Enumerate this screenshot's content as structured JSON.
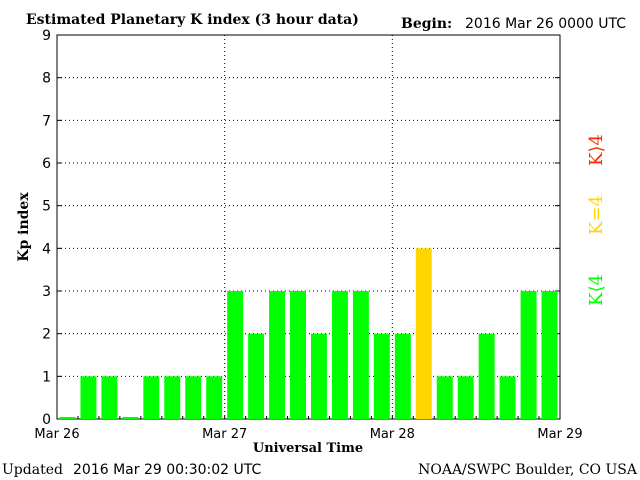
{
  "header": {
    "title": "Estimated Planetary K index (3 hour data)",
    "begin_label": "Begin:",
    "begin_value": "2016 Mar 26 0000 UTC"
  },
  "footer": {
    "updated_label": "Updated",
    "updated_value": "2016 Mar 29 00:30:02 UTC",
    "source": "NOAA/SWPC Boulder, CO USA"
  },
  "legend": {
    "high": "K>4",
    "equal": "K=4",
    "low": "K<4"
  },
  "colors": {
    "low": "#00ff00",
    "equal": "#ffd700",
    "high": "#ff2a00",
    "gridline": "#000000",
    "axis": "#000000"
  },
  "chart_data": {
    "type": "bar",
    "xlabel": "Universal Time",
    "ylabel": "Kp index",
    "ylim": [
      0,
      9
    ],
    "yticks": [
      "0",
      "1",
      "2",
      "3",
      "4",
      "5",
      "6",
      "7",
      "8",
      "9"
    ],
    "xtick_labels": [
      "Mar 26",
      "Mar 27",
      "Mar 28",
      "Mar 29"
    ],
    "grid": "dotted at each integer Kp and at each day boundary",
    "interval_hours": 3,
    "values": [
      0,
      1,
      1,
      0,
      1,
      1,
      1,
      1,
      3,
      2,
      3,
      3,
      2,
      3,
      3,
      2,
      2,
      4,
      1,
      1,
      2,
      1,
      3,
      3
    ]
  }
}
